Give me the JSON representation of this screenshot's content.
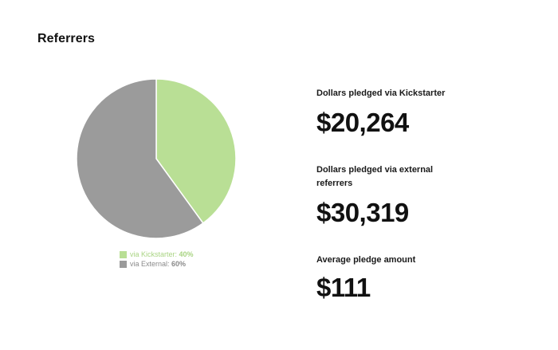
{
  "page": {
    "title": "Referrers"
  },
  "chart_data": {
    "type": "pie",
    "categories": [
      "via Kickstarter",
      "via External"
    ],
    "values": [
      40,
      60
    ],
    "value_labels": [
      "40%",
      "60%"
    ],
    "colors": [
      "#b9df95",
      "#9b9b9b"
    ],
    "legend": {
      "placement": "bottom",
      "items": [
        {
          "label": "via Kickstarter:",
          "value": "40%",
          "color": "#b9df95",
          "text_color": "#a9d483"
        },
        {
          "label": "via External:",
          "value": "60%",
          "color": "#9b9b9b",
          "text_color": "#8a8a8a"
        }
      ]
    }
  },
  "stats": [
    {
      "label": "Dollars pledged via Kickstarter",
      "value": "$20,264"
    },
    {
      "label": "Dollars pledged via external referrers",
      "value": "$30,319"
    },
    {
      "label": "Average pledge amount",
      "value": "$111"
    }
  ]
}
